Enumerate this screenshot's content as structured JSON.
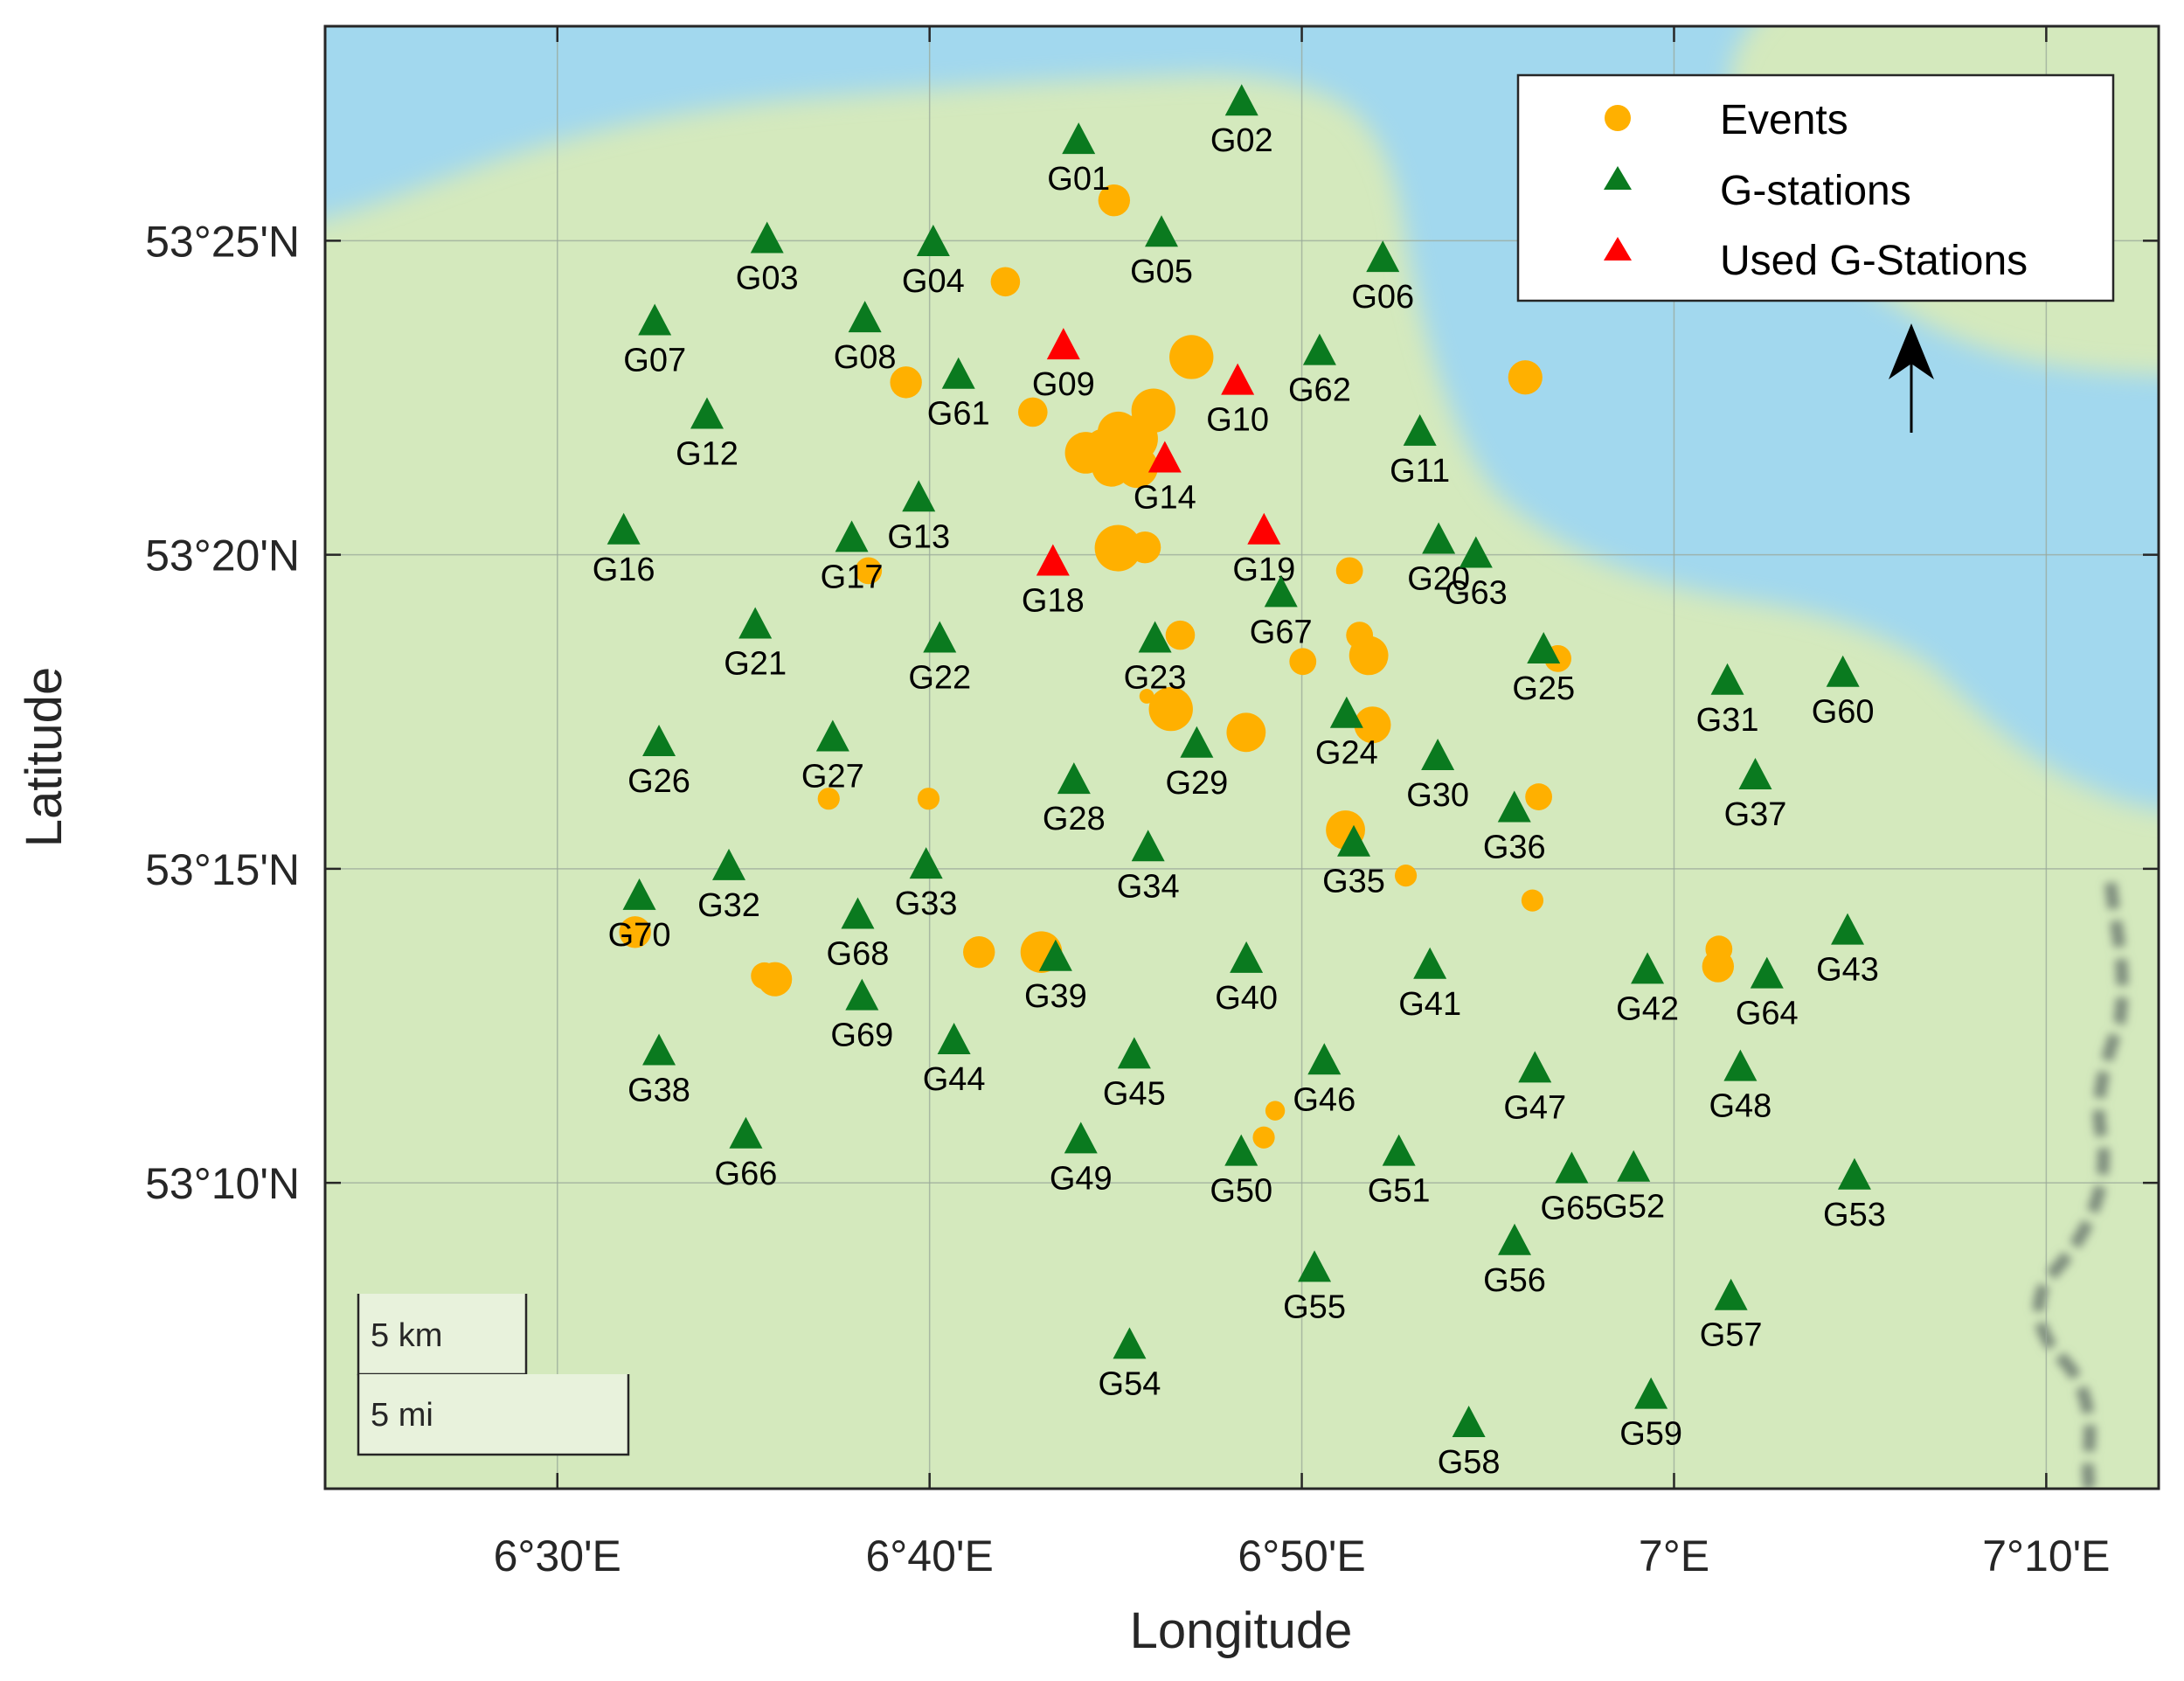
{
  "axes": {
    "xlabel": "Longitude",
    "ylabel": "Latitude",
    "x_ticks": [
      {
        "value": 6.5,
        "label": "6°30'E"
      },
      {
        "value": 6.6666667,
        "label": "6°40'E"
      },
      {
        "value": 6.8333333,
        "label": "6°50'E"
      },
      {
        "value": 7.0,
        "label": "7°E"
      },
      {
        "value": 7.1666667,
        "label": "7°10'E"
      }
    ],
    "y_ticks": [
      {
        "value": 53.4166667,
        "label": "53°25'N"
      },
      {
        "value": 53.3333333,
        "label": "53°20'N"
      },
      {
        "value": 53.25,
        "label": "53°15'N"
      },
      {
        "value": 53.1666667,
        "label": "53°10'N"
      }
    ],
    "xlim": [
      6.396,
      7.217
    ],
    "ylim": [
      53.0855,
      53.4736
    ]
  },
  "legend": {
    "placement": "top-right",
    "items": [
      {
        "label": "Events",
        "symbol": "circle",
        "color": "#ffb000"
      },
      {
        "label": "G-stations",
        "symbol": "triangle",
        "color": "#0a7a1f"
      },
      {
        "label": "Used G-Stations",
        "symbol": "triangle",
        "color": "#ff0000"
      }
    ]
  },
  "scale_bar": {
    "km_label": "5 km",
    "mi_label": "5 mi"
  },
  "north_arrow": "north-arrow-icon",
  "colors": {
    "land": "#d4e9bd",
    "water": "#a2d8ee",
    "events": "#ffb000",
    "stations": "#0a7a1f",
    "used_stations": "#ff0000",
    "grid": "#9aa89a"
  },
  "chart_data": {
    "type": "scatter",
    "stations": [
      {
        "name": "G01",
        "lon": 6.7334,
        "lat": 53.4434,
        "used": false
      },
      {
        "name": "G02",
        "lon": 6.8064,
        "lat": 53.4536,
        "used": false
      },
      {
        "name": "G03",
        "lon": 6.5939,
        "lat": 53.4171,
        "used": false
      },
      {
        "name": "G04",
        "lon": 6.6683,
        "lat": 53.4163,
        "used": false
      },
      {
        "name": "G05",
        "lon": 6.7705,
        "lat": 53.4188,
        "used": false
      },
      {
        "name": "G06",
        "lon": 6.8696,
        "lat": 53.4121,
        "used": false
      },
      {
        "name": "G07",
        "lon": 6.5436,
        "lat": 53.3953,
        "used": false
      },
      {
        "name": "G08",
        "lon": 6.6377,
        "lat": 53.3961,
        "used": false
      },
      {
        "name": "G09",
        "lon": 6.7266,
        "lat": 53.3889,
        "used": true
      },
      {
        "name": "G10",
        "lon": 6.8046,
        "lat": 53.3795,
        "used": true
      },
      {
        "name": "G11",
        "lon": 6.8862,
        "lat": 53.366,
        "used": false
      },
      {
        "name": "G12",
        "lon": 6.567,
        "lat": 53.3705,
        "used": false
      },
      {
        "name": "G13",
        "lon": 6.6618,
        "lat": 53.3485,
        "used": false
      },
      {
        "name": "G14",
        "lon": 6.772,
        "lat": 53.3589,
        "used": true
      },
      {
        "name": "G16",
        "lon": 6.5297,
        "lat": 53.3398,
        "used": false
      },
      {
        "name": "G17",
        "lon": 6.6318,
        "lat": 53.3378,
        "used": false
      },
      {
        "name": "G18",
        "lon": 6.7219,
        "lat": 53.3315,
        "used": true
      },
      {
        "name": "G19",
        "lon": 6.8164,
        "lat": 53.3398,
        "used": true
      },
      {
        "name": "G20",
        "lon": 6.8946,
        "lat": 53.3373,
        "used": false
      },
      {
        "name": "G21",
        "lon": 6.5886,
        "lat": 53.3148,
        "used": false
      },
      {
        "name": "G22",
        "lon": 6.6712,
        "lat": 53.3111,
        "used": false
      },
      {
        "name": "G23",
        "lon": 6.7676,
        "lat": 53.3111,
        "used": false
      },
      {
        "name": "G24",
        "lon": 6.8534,
        "lat": 53.2911,
        "used": false
      },
      {
        "name": "G25",
        "lon": 6.9416,
        "lat": 53.3082,
        "used": false
      },
      {
        "name": "G26",
        "lon": 6.5455,
        "lat": 53.2836,
        "used": false
      },
      {
        "name": "G27",
        "lon": 6.6233,
        "lat": 53.2849,
        "used": false
      },
      {
        "name": "G28",
        "lon": 6.7313,
        "lat": 53.2736,
        "used": false
      },
      {
        "name": "G29",
        "lon": 6.7863,
        "lat": 53.2832,
        "used": false
      },
      {
        "name": "G30",
        "lon": 6.8942,
        "lat": 53.2799,
        "used": false
      },
      {
        "name": "G31",
        "lon": 7.0239,
        "lat": 53.2999,
        "used": false
      },
      {
        "name": "G32",
        "lon": 6.5768,
        "lat": 53.2507,
        "used": false
      },
      {
        "name": "G33",
        "lon": 6.6651,
        "lat": 53.2511,
        "used": false
      },
      {
        "name": "G34",
        "lon": 6.7645,
        "lat": 53.2557,
        "used": false
      },
      {
        "name": "G35",
        "lon": 6.8566,
        "lat": 53.257,
        "used": false
      },
      {
        "name": "G36",
        "lon": 6.9285,
        "lat": 53.2661,
        "used": false
      },
      {
        "name": "G37",
        "lon": 7.0364,
        "lat": 53.2748,
        "used": false
      },
      {
        "name": "G38",
        "lon": 6.5455,
        "lat": 53.2016,
        "used": false
      },
      {
        "name": "G39",
        "lon": 6.7231,
        "lat": 53.2266,
        "used": false
      },
      {
        "name": "G40",
        "lon": 6.8085,
        "lat": 53.2261,
        "used": false
      },
      {
        "name": "G41",
        "lon": 6.8907,
        "lat": 53.2245,
        "used": false
      },
      {
        "name": "G42",
        "lon": 6.9881,
        "lat": 53.2232,
        "used": false
      },
      {
        "name": "G43",
        "lon": 7.0777,
        "lat": 53.2336,
        "used": false
      },
      {
        "name": "G44",
        "lon": 6.6776,
        "lat": 53.2045,
        "used": false
      },
      {
        "name": "G45",
        "lon": 6.7583,
        "lat": 53.2007,
        "used": false
      },
      {
        "name": "G46",
        "lon": 6.8434,
        "lat": 53.1991,
        "used": false
      },
      {
        "name": "G47",
        "lon": 6.9377,
        "lat": 53.197,
        "used": false
      },
      {
        "name": "G48",
        "lon": 7.0297,
        "lat": 53.1974,
        "used": false
      },
      {
        "name": "G49",
        "lon": 6.7344,
        "lat": 53.1782,
        "used": false
      },
      {
        "name": "G50",
        "lon": 6.8062,
        "lat": 53.1749,
        "used": false
      },
      {
        "name": "G51",
        "lon": 6.8768,
        "lat": 53.1749,
        "used": false
      },
      {
        "name": "G52",
        "lon": 6.9819,
        "lat": 53.1707,
        "used": false
      },
      {
        "name": "G53",
        "lon": 7.0808,
        "lat": 53.1686,
        "used": false
      },
      {
        "name": "G54",
        "lon": 6.7562,
        "lat": 53.1237,
        "used": false
      },
      {
        "name": "G55",
        "lon": 6.839,
        "lat": 53.1441,
        "used": false
      },
      {
        "name": "G56",
        "lon": 6.9286,
        "lat": 53.1512,
        "used": false
      },
      {
        "name": "G57",
        "lon": 7.0255,
        "lat": 53.1366,
        "used": false
      },
      {
        "name": "G58",
        "lon": 6.9081,
        "lat": 53.1029,
        "used": false
      },
      {
        "name": "G59",
        "lon": 6.9897,
        "lat": 53.1104,
        "used": false
      },
      {
        "name": "G60",
        "lon": 7.0756,
        "lat": 53.302,
        "used": false
      },
      {
        "name": "G61",
        "lon": 6.6796,
        "lat": 53.3811,
        "used": false
      },
      {
        "name": "G62",
        "lon": 6.8413,
        "lat": 53.3874,
        "used": false
      },
      {
        "name": "G63",
        "lon": 6.9113,
        "lat": 53.3336,
        "used": false
      },
      {
        "name": "G64",
        "lon": 7.0416,
        "lat": 53.222,
        "used": false
      },
      {
        "name": "G65",
        "lon": 6.9542,
        "lat": 53.1703,
        "used": false
      },
      {
        "name": "G66",
        "lon": 6.5844,
        "lat": 53.1795,
        "used": false
      },
      {
        "name": "G67",
        "lon": 6.824,
        "lat": 53.3232,
        "used": false
      },
      {
        "name": "G68",
        "lon": 6.6345,
        "lat": 53.2378,
        "used": false
      },
      {
        "name": "G69",
        "lon": 6.6364,
        "lat": 53.2162,
        "used": false
      },
      {
        "name": "G70",
        "lon": 6.5367,
        "lat": 53.2428,
        "used": false
      }
    ],
    "events": [
      {
        "lon": 6.7493,
        "lat": 53.4274,
        "size": 1.3
      },
      {
        "lon": 6.7006,
        "lat": 53.4058,
        "size": 1.2
      },
      {
        "lon": 6.6561,
        "lat": 53.3791,
        "size": 1.3
      },
      {
        "lon": 6.7129,
        "lat": 53.3712,
        "size": 1.2
      },
      {
        "lon": 6.7839,
        "lat": 53.3858,
        "size": 1.8
      },
      {
        "lon": 6.7669,
        "lat": 53.3716,
        "size": 1.8
      },
      {
        "lon": 6.7512,
        "lat": 53.3658,
        "size": 1.7
      },
      {
        "lon": 6.7585,
        "lat": 53.3641,
        "size": 1.9
      },
      {
        "lon": 6.7366,
        "lat": 53.3604,
        "size": 1.7
      },
      {
        "lon": 6.7596,
        "lat": 53.3566,
        "size": 1.7
      },
      {
        "lon": 6.7447,
        "lat": 53.3616,
        "size": 1.6
      },
      {
        "lon": 6.7566,
        "lat": 53.3591,
        "size": 1.5
      },
      {
        "lon": 6.7481,
        "lat": 53.3566,
        "size": 1.6
      },
      {
        "lon": 6.751,
        "lat": 53.3351,
        "size": 1.9
      },
      {
        "lon": 6.7631,
        "lat": 53.3353,
        "size": 1.3
      },
      {
        "lon": 6.9334,
        "lat": 53.3804,
        "size": 1.4
      },
      {
        "lon": 6.6393,
        "lat": 53.3291,
        "size": 1.1
      },
      {
        "lon": 6.8547,
        "lat": 53.3291,
        "size": 1.1
      },
      {
        "lon": 6.7789,
        "lat": 53.312,
        "size": 1.2
      },
      {
        "lon": 6.8592,
        "lat": 53.312,
        "size": 1.1
      },
      {
        "lon": 6.8338,
        "lat": 53.305,
        "size": 1.1
      },
      {
        "lon": 6.8633,
        "lat": 53.3066,
        "size": 1.6
      },
      {
        "lon": 6.7747,
        "lat": 53.2924,
        "size": 1.8
      },
      {
        "lon": 6.7639,
        "lat": 53.2958,
        "size": 0.6
      },
      {
        "lon": 6.8084,
        "lat": 53.2862,
        "size": 1.6
      },
      {
        "lon": 6.865,
        "lat": 53.2882,
        "size": 1.5
      },
      {
        "lon": 6.948,
        "lat": 53.3058,
        "size": 1.1
      },
      {
        "lon": 6.6215,
        "lat": 53.2686,
        "size": 0.9
      },
      {
        "lon": 6.6662,
        "lat": 53.2686,
        "size": 0.9
      },
      {
        "lon": 6.9394,
        "lat": 53.2691,
        "size": 1.1
      },
      {
        "lon": 6.8529,
        "lat": 53.2603,
        "size": 1.6
      },
      {
        "lon": 6.8799,
        "lat": 53.2482,
        "size": 0.9
      },
      {
        "lon": 6.9366,
        "lat": 53.2416,
        "size": 0.9
      },
      {
        "lon": 6.5348,
        "lat": 53.2332,
        "size": 1.3
      },
      {
        "lon": 6.5974,
        "lat": 53.2207,
        "size": 1.4
      },
      {
        "lon": 6.5927,
        "lat": 53.2216,
        "size": 1.1
      },
      {
        "lon": 6.6888,
        "lat": 53.2279,
        "size": 1.3
      },
      {
        "lon": 6.7167,
        "lat": 53.2279,
        "size": 1.7
      },
      {
        "lon": 7.0201,
        "lat": 53.2287,
        "size": 1.1
      },
      {
        "lon": 7.0197,
        "lat": 53.2241,
        "size": 1.3
      },
      {
        "lon": 6.8163,
        "lat": 53.1787,
        "size": 0.9
      },
      {
        "lon": 6.8214,
        "lat": 53.1858,
        "size": 0.8
      }
    ]
  }
}
